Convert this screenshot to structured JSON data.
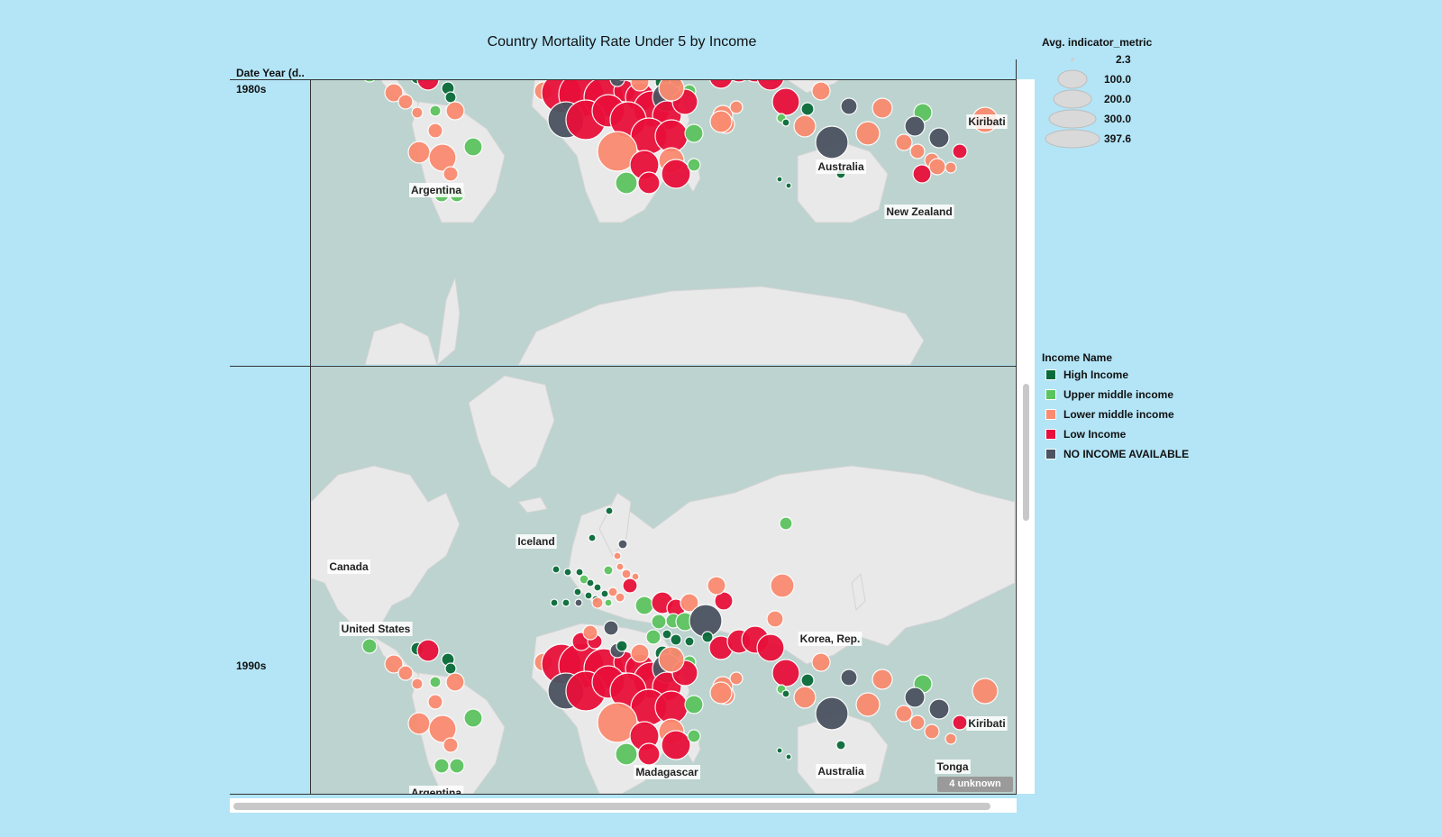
{
  "title": "Country Mortality Rate Under 5 by Income",
  "row_header": "Date Year (d..",
  "rows": [
    {
      "label": "1980s"
    },
    {
      "label": "1990s"
    }
  ],
  "size_legend": {
    "title": "Avg. indicator_metric",
    "items": [
      "2.3",
      "100.0",
      "200.0",
      "300.0",
      "397.6"
    ]
  },
  "color_legend": {
    "title": "Income Name",
    "items": [
      {
        "label": "High Income",
        "color": "#0a6b3a"
      },
      {
        "label": "Upper middle income",
        "color": "#5cc45f"
      },
      {
        "label": "Lower middle income",
        "color": "#fa8b70"
      },
      {
        "label": "Low Income",
        "color": "#e8103a"
      },
      {
        "label": "NO INCOME AVAILABLE",
        "color": "#4c5361"
      }
    ]
  },
  "unknown_badge": "4 unknown",
  "map_labels_1980s": [
    "Argentina",
    "Australia",
    "New Zealand",
    "Kiribati"
  ],
  "map_labels_1990s": [
    "Canada",
    "Iceland",
    "United States",
    "Korea, Rep.",
    "Kiribati",
    "Australia",
    "Tonga",
    "Madagascar",
    "Argentina"
  ],
  "colors": {
    "background": "#b3e5f7",
    "water": "#bcd3cf",
    "land": "#e9e9e9"
  }
}
